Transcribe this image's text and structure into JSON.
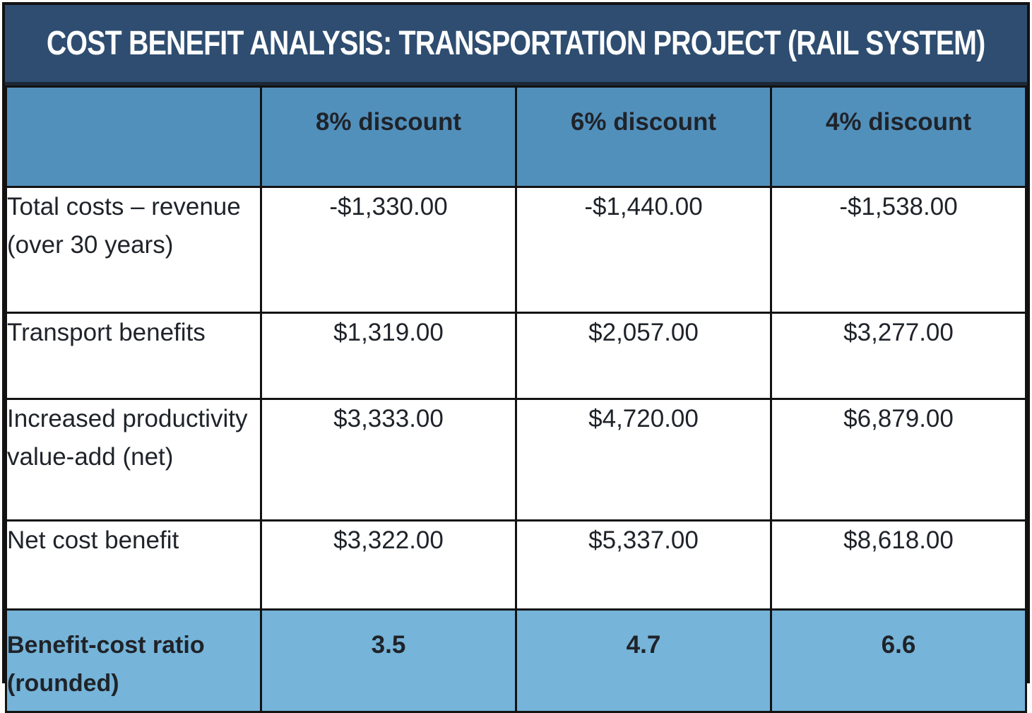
{
  "table": {
    "title": "COST BENEFIT ANALYSIS: TRANSPORTATION PROJECT (RAIL SYSTEM)",
    "columns": [
      "",
      "8% discount",
      "6% discount",
      "4% discount"
    ],
    "rows": [
      {
        "label": "Total costs – revenue (over 30 years)",
        "values": [
          "-$1,330.00",
          "-$1,440.00",
          "-$1,538.00"
        ]
      },
      {
        "label": "Transport benefits",
        "values": [
          "$1,319.00",
          "$2,057.00",
          "$3,277.00"
        ]
      },
      {
        "label": "Increased productivity value-add (net)",
        "values": [
          "$3,333.00",
          "$4,720.00",
          "$6,879.00"
        ]
      },
      {
        "label": "Net cost benefit",
        "values": [
          "$3,322.00",
          "$5,337.00",
          "$8,618.00"
        ]
      }
    ],
    "footer": {
      "label": "Benefit-cost ratio (rounded)",
      "values": [
        "3.5",
        "4.7",
        "6.6"
      ]
    }
  },
  "chart_data": {
    "type": "table",
    "title": "COST BENEFIT ANALYSIS: TRANSPORTATION PROJECT (RAIL SYSTEM)",
    "columns": [
      "8% discount",
      "6% discount",
      "4% discount"
    ],
    "rows": [
      {
        "label": "Total costs – revenue (over 30 years)",
        "values": [
          -1330.0,
          -1440.0,
          -1538.0
        ],
        "unit": "USD"
      },
      {
        "label": "Transport benefits",
        "values": [
          1319.0,
          2057.0,
          3277.0
        ],
        "unit": "USD"
      },
      {
        "label": "Increased productivity value-add (net)",
        "values": [
          3333.0,
          4720.0,
          6879.0
        ],
        "unit": "USD"
      },
      {
        "label": "Net cost benefit",
        "values": [
          3322.0,
          5337.0,
          8618.0
        ],
        "unit": "USD"
      },
      {
        "label": "Benefit-cost ratio (rounded)",
        "values": [
          3.5,
          4.7,
          6.6
        ],
        "unit": "ratio"
      }
    ]
  },
  "colors": {
    "title-bg": "#2e4d70",
    "title-sep": "#1c2836",
    "header-bg": "#5290bc",
    "footer-bg": "#76b4d9",
    "grid": "#121212",
    "ink": "#1f2329",
    "title-ink": "#fdfdfd",
    "cell-bg": "#ffffff",
    "page-bg": "#fdfcfb"
  }
}
